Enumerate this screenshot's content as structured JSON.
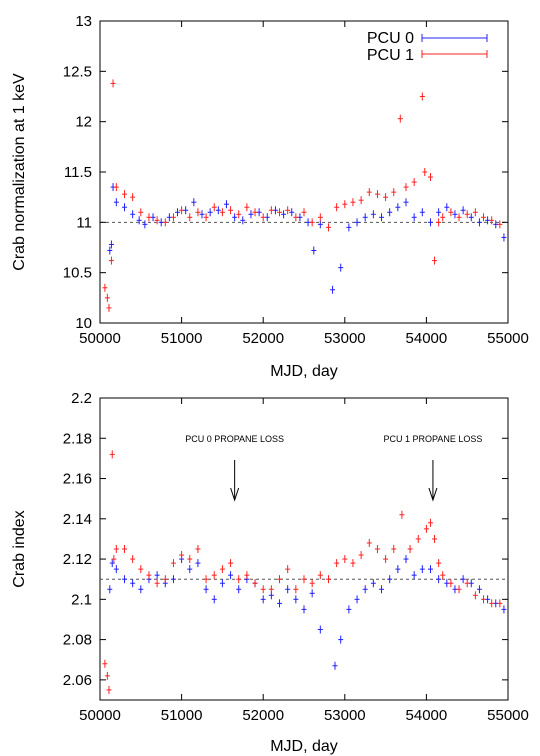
{
  "chart_data": [
    {
      "type": "scatter",
      "xlabel": "MJD, day",
      "ylabel": "Crab normalization at 1 keV",
      "xlim": [
        50000,
        55000
      ],
      "ylim": [
        10,
        13
      ],
      "xticks": [
        "50000",
        "51000",
        "52000",
        "53000",
        "54000",
        "55000"
      ],
      "yticks": [
        "10",
        "10.5",
        "11",
        "11.5",
        "12",
        "12.5",
        "13"
      ],
      "legend_position": "top-right",
      "reference_line": 11.0,
      "legend": [
        {
          "label": "PCU 0",
          "color": "#2020ff"
        },
        {
          "label": "PCU 1",
          "color": "#ff2020"
        }
      ],
      "series": [
        {
          "name": "PCU 0",
          "color": "#2020ff",
          "x": [
            50120,
            50140,
            50160,
            50200,
            50300,
            50400,
            50480,
            50550,
            50650,
            50750,
            50850,
            50950,
            51050,
            51150,
            51250,
            51350,
            51450,
            51550,
            51650,
            51750,
            51850,
            51950,
            52050,
            52150,
            52250,
            52350,
            52450,
            52550,
            52620,
            52700,
            52850,
            52950,
            53050,
            53150,
            53250,
            53350,
            53450,
            53550,
            53650,
            53750,
            53850,
            53950,
            54050,
            54150,
            54250,
            54350,
            54450,
            54550,
            54650,
            54750,
            54850,
            54950
          ],
          "y": [
            10.72,
            10.78,
            11.35,
            11.2,
            11.15,
            11.08,
            11.02,
            10.98,
            11.05,
            11.0,
            11.05,
            11.1,
            11.12,
            11.2,
            11.08,
            11.1,
            11.12,
            11.18,
            11.05,
            11.02,
            11.08,
            11.1,
            11.05,
            11.12,
            11.08,
            11.1,
            11.05,
            11.0,
            10.72,
            10.98,
            10.33,
            10.55,
            10.95,
            11.0,
            11.05,
            11.08,
            11.05,
            11.1,
            11.15,
            11.2,
            11.05,
            11.1,
            11.0,
            11.1,
            11.15,
            11.08,
            11.12,
            11.05,
            11.0,
            11.02,
            10.98,
            10.85
          ]
        },
        {
          "name": "PCU 1",
          "color": "#ff2020",
          "x": [
            50060,
            50090,
            50110,
            50140,
            50160,
            50200,
            50300,
            50400,
            50500,
            50600,
            50700,
            50800,
            50900,
            51000,
            51100,
            51200,
            51300,
            51400,
            51500,
            51600,
            51700,
            51800,
            51900,
            52000,
            52100,
            52200,
            52300,
            52400,
            52500,
            52600,
            52700,
            52800,
            52900,
            53000,
            53100,
            53200,
            53300,
            53400,
            53500,
            53600,
            53680,
            53750,
            53850,
            53950,
            53980,
            54050,
            54100,
            54150,
            54200,
            54300,
            54400,
            54500,
            54600,
            54700,
            54800,
            54900
          ],
          "y": [
            10.35,
            10.25,
            10.15,
            10.62,
            12.38,
            11.35,
            11.28,
            11.25,
            11.1,
            11.05,
            11.02,
            11.0,
            11.05,
            11.12,
            11.05,
            11.1,
            11.05,
            11.15,
            11.1,
            11.12,
            11.08,
            11.15,
            11.1,
            11.05,
            11.12,
            11.1,
            11.12,
            11.05,
            11.1,
            11.0,
            11.05,
            10.95,
            11.15,
            11.18,
            11.2,
            11.22,
            11.3,
            11.28,
            11.25,
            11.3,
            12.03,
            11.35,
            11.4,
            12.25,
            11.5,
            11.45,
            10.62,
            11.0,
            11.05,
            11.1,
            11.05,
            11.08,
            11.1,
            11.05,
            11.02,
            10.98
          ]
        }
      ]
    },
    {
      "type": "scatter",
      "xlabel": "MJD, day",
      "ylabel": "Crab index",
      "xlim": [
        50000,
        55000
      ],
      "ylim": [
        2.05,
        2.2
      ],
      "xticks": [
        "50000",
        "51000",
        "52000",
        "53000",
        "54000",
        "55000"
      ],
      "yticks": [
        "2.06",
        "2.08",
        "2.1",
        "2.12",
        "2.14",
        "2.16",
        "2.18",
        "2.2"
      ],
      "reference_line": 2.11,
      "annotations": [
        {
          "text": "PCU 0 PROPANE LOSS",
          "x": 51650
        },
        {
          "text": "PCU 1 PROPANE LOSS",
          "x": 54080
        }
      ],
      "series": [
        {
          "name": "PCU 0",
          "color": "#2020ff",
          "x": [
            50120,
            50150,
            50200,
            50300,
            50400,
            50500,
            50600,
            50700,
            50800,
            50900,
            51000,
            51100,
            51200,
            51300,
            51400,
            51500,
            51600,
            51700,
            51800,
            51900,
            52000,
            52100,
            52200,
            52300,
            52400,
            52500,
            52600,
            52700,
            52880,
            52950,
            53050,
            53150,
            53250,
            53350,
            53450,
            53550,
            53650,
            53750,
            53850,
            53950,
            54050,
            54150,
            54250,
            54350,
            54450,
            54550,
            54650,
            54750,
            54850,
            54950
          ],
          "y": [
            2.105,
            2.118,
            2.115,
            2.11,
            2.108,
            2.105,
            2.11,
            2.112,
            2.108,
            2.11,
            2.12,
            2.115,
            2.118,
            2.105,
            2.1,
            2.108,
            2.112,
            2.105,
            2.11,
            2.108,
            2.1,
            2.102,
            2.098,
            2.105,
            2.1,
            2.095,
            2.103,
            2.085,
            2.067,
            2.08,
            2.095,
            2.1,
            2.105,
            2.108,
            2.105,
            2.11,
            2.115,
            2.12,
            2.112,
            2.115,
            2.115,
            2.11,
            2.108,
            2.105,
            2.11,
            2.108,
            2.105,
            2.1,
            2.098,
            2.095
          ]
        },
        {
          "name": "PCU 1",
          "color": "#ff2020",
          "x": [
            50060,
            50090,
            50110,
            50150,
            50170,
            50200,
            50300,
            50400,
            50500,
            50600,
            50700,
            50800,
            50900,
            51000,
            51100,
            51200,
            51300,
            51400,
            51500,
            51600,
            51700,
            51800,
            51900,
            52000,
            52100,
            52200,
            52300,
            52400,
            52500,
            52600,
            52700,
            52800,
            52900,
            53000,
            53100,
            53200,
            53300,
            53400,
            53500,
            53600,
            53700,
            53800,
            53900,
            54000,
            54050,
            54100,
            54150,
            54200,
            54300,
            54400,
            54500,
            54600,
            54700,
            54800,
            54900
          ],
          "y": [
            2.068,
            2.062,
            2.055,
            2.172,
            2.12,
            2.125,
            2.125,
            2.12,
            2.115,
            2.112,
            2.108,
            2.11,
            2.118,
            2.122,
            2.12,
            2.125,
            2.11,
            2.112,
            2.115,
            2.118,
            2.11,
            2.112,
            2.108,
            2.105,
            2.105,
            2.11,
            2.115,
            2.105,
            2.11,
            2.108,
            2.112,
            2.11,
            2.118,
            2.12,
            2.118,
            2.122,
            2.128,
            2.125,
            2.12,
            2.125,
            2.142,
            2.125,
            2.13,
            2.135,
            2.138,
            2.13,
            2.118,
            2.112,
            2.108,
            2.105,
            2.108,
            2.102,
            2.1,
            2.098,
            2.098
          ]
        }
      ]
    }
  ]
}
